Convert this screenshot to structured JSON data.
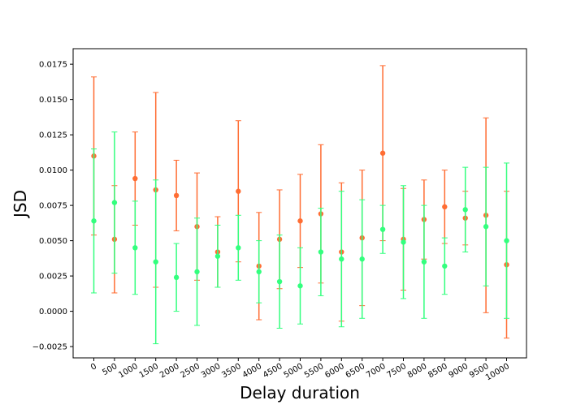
{
  "chart_data": {
    "type": "scatter",
    "title": "",
    "xlabel": "Delay duration",
    "ylabel": "JSD",
    "categories": [
      "0",
      "500",
      "1000",
      "1500",
      "2000",
      "2500",
      "3000",
      "3500",
      "4000",
      "4500",
      "5000",
      "5500",
      "6000",
      "6500",
      "7000",
      "7500",
      "8000",
      "8500",
      "9000",
      "9500",
      "10000"
    ],
    "ylim": [
      -0.0033,
      0.0186
    ],
    "yticks": [
      "−0.0025",
      "0.0000",
      "0.0025",
      "0.0050",
      "0.0075",
      "0.0100",
      "0.0125",
      "0.0150",
      "0.0175"
    ],
    "ytick_values": [
      -0.0025,
      0.0,
      0.0025,
      0.005,
      0.0075,
      0.01,
      0.0125,
      0.015,
      0.0175
    ],
    "grid": false,
    "legend": "none",
    "series": [
      {
        "color": "#ff6d33",
        "values": [
          0.011,
          0.0051,
          0.0094,
          0.0086,
          0.0082,
          0.006,
          0.0042,
          0.0085,
          0.0032,
          0.0051,
          0.0064,
          0.0069,
          0.0042,
          0.0052,
          0.0112,
          0.0051,
          0.0065,
          0.0074,
          0.0066,
          0.0068,
          0.0033
        ],
        "errors": [
          0.0056,
          0.0038,
          0.0033,
          0.0069,
          0.0025,
          0.0038,
          0.0025,
          0.005,
          0.0038,
          0.0035,
          0.0033,
          0.0049,
          0.0049,
          0.0048,
          0.0062,
          0.0036,
          0.0028,
          0.0026,
          0.0019,
          0.0069,
          0.0052
        ]
      },
      {
        "color": "#33ff7e",
        "values": [
          0.0064,
          0.0077,
          0.0045,
          0.0035,
          0.0024,
          0.0028,
          0.0039,
          0.0045,
          0.0028,
          0.0021,
          0.0018,
          0.0042,
          0.0037,
          0.0037,
          0.0058,
          0.0049,
          0.0035,
          0.0032,
          0.0072,
          0.006,
          0.005
        ],
        "errors": [
          0.0051,
          0.005,
          0.0033,
          0.0058,
          0.0024,
          0.0038,
          0.0022,
          0.0023,
          0.0022,
          0.0033,
          0.0027,
          0.0031,
          0.0048,
          0.0042,
          0.0017,
          0.004,
          0.004,
          0.002,
          0.003,
          0.0042,
          0.0055
        ]
      }
    ]
  }
}
